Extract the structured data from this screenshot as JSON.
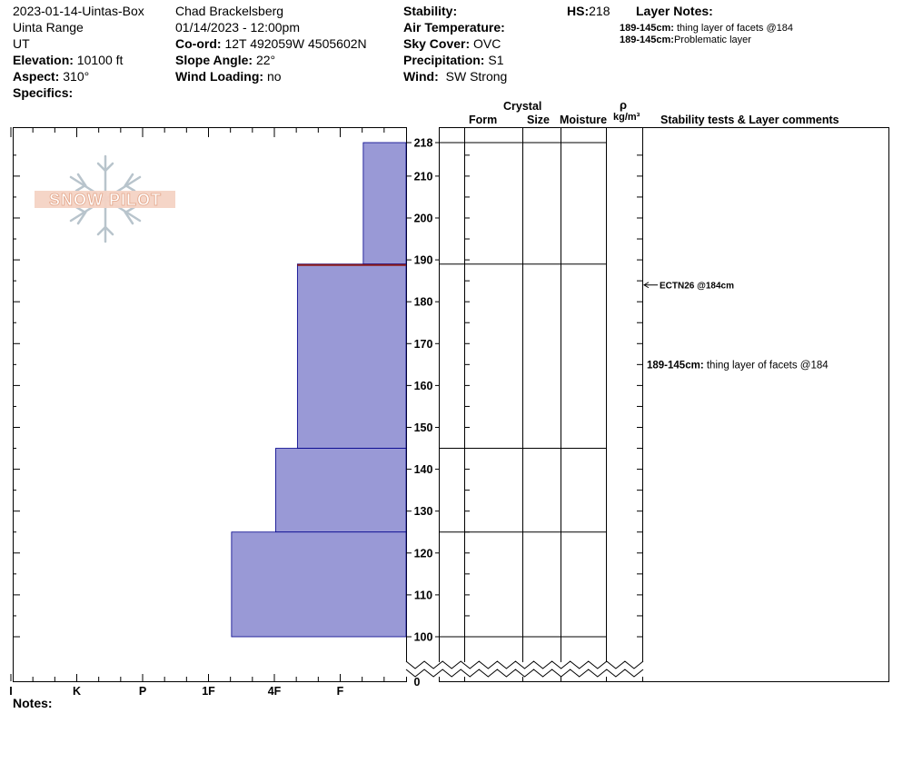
{
  "header": {
    "title": "2023-01-14-Uintas-Box",
    "range": "Uinta Range",
    "state": "UT",
    "elevation_label": "Elevation:",
    "elevation_value": "10100 ft",
    "aspect_label": "Aspect:",
    "aspect_value": "310°",
    "specifics_label": "Specifics:",
    "observer": "Chad Brackelsberg",
    "datetime": "01/14/2023 - 12:00pm",
    "coord_label": "Co-ord:",
    "coord_value": "12T 492059W 4505602N",
    "slope_label": "Slope Angle:",
    "slope_value": "22°",
    "wind_loading_label": "Wind Loading:",
    "wind_loading_value": "no",
    "stability_label": "Stability:",
    "air_temp_label": "Air Temperature:",
    "sky_label": "Sky Cover:",
    "sky_value": "OVC",
    "precip_label": "Precipitation:",
    "precip_value": "S1",
    "wind_label": "Wind:",
    "wind_value": "SW Strong",
    "hs_label": "HS:",
    "hs_value": "218",
    "layer_notes_label": "Layer Notes:",
    "layer_notes": [
      {
        "range": "189-145cm:",
        "text": "thing layer of facets @184"
      },
      {
        "range": "189-145cm:",
        "text": "Problematic layer"
      }
    ]
  },
  "logo": {
    "text": "SNOW PILOT"
  },
  "columns": {
    "crystal": "Crystal",
    "form": "Form",
    "size": "Size",
    "moisture": "Moisture",
    "rho": "ρ",
    "density_unit": "kg/m³",
    "stability": "Stability tests & Layer comments"
  },
  "notes_label": "Notes:",
  "chart_data": {
    "type": "snow-profile",
    "hs": 218,
    "y_axis_ticks": [
      218,
      210,
      200,
      190,
      180,
      170,
      160,
      150,
      140,
      130,
      120,
      110,
      100
    ],
    "axis_break": {
      "from": 0,
      "to": 100
    },
    "axis_zero_label": "0",
    "hardness_scale": [
      "I",
      "K",
      "P",
      "1F",
      "4F",
      "F"
    ],
    "hardness_index": {
      "F": 1,
      "4F": 2,
      "1F": 3,
      "P": 4,
      "K": 5,
      "I": 6
    },
    "layers": [
      {
        "top": 218,
        "bottom": 189,
        "hardness": 0.65
      },
      {
        "top": 189,
        "bottom": 145,
        "hardness": 1.65
      },
      {
        "top": 145,
        "bottom": 125,
        "hardness": 1.98
      },
      {
        "top": 125,
        "bottom": 100,
        "hardness": 2.65
      }
    ],
    "layer_boundaries": [
      218,
      189,
      145,
      125,
      100
    ],
    "stability_tests": [
      {
        "depth": 184,
        "label": "ECTN26 @184cm"
      }
    ],
    "layer_comments": [
      {
        "depth": 165,
        "range": "189-145cm:",
        "text": "thing layer of facets @184"
      }
    ],
    "colors": {
      "fill": "#9999d6",
      "outline": "#00008b",
      "weak_layer": "#8b1a1a"
    }
  }
}
